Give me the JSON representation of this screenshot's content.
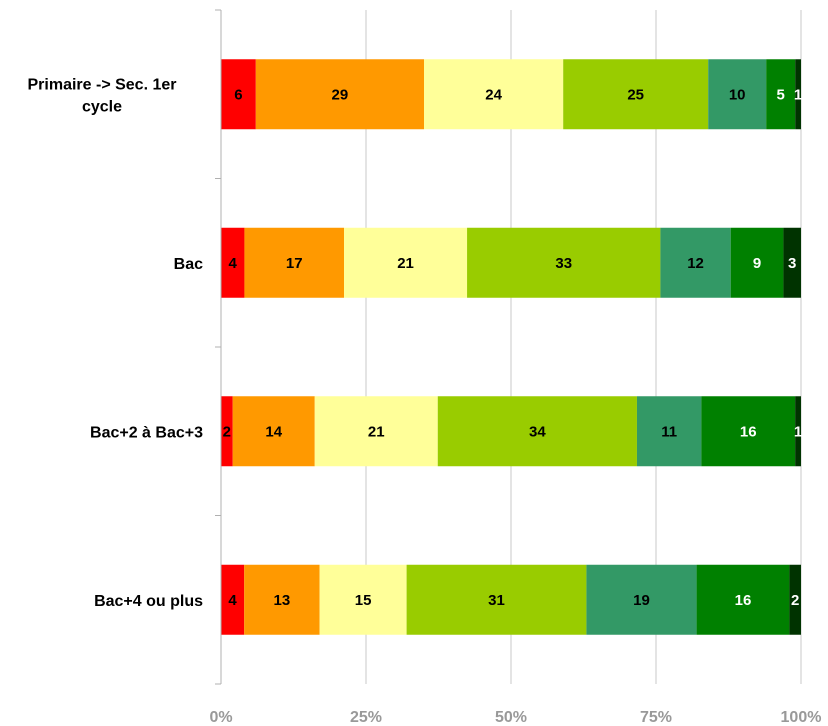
{
  "chart_data": {
    "type": "bar",
    "orientation": "horizontal",
    "stacked": "percent",
    "categories": [
      "Primaire -> Sec. 1er cycle",
      "Bac",
      "Bac+2 à Bac+3",
      "Bac+4 ou plus"
    ],
    "category_lines": [
      [
        "Primaire -> Sec. 1er",
        "cycle"
      ],
      [
        "Bac"
      ],
      [
        "Bac+2 à Bac+3"
      ],
      [
        "Bac+4 ou plus"
      ]
    ],
    "series": [
      {
        "values": [
          6,
          4,
          2,
          4
        ],
        "color": "#ff0000"
      },
      {
        "values": [
          29,
          17,
          14,
          13
        ],
        "color": "#ff9900"
      },
      {
        "values": [
          24,
          21,
          21,
          15
        ],
        "color": "#ffff99"
      },
      {
        "values": [
          25,
          33,
          34,
          31
        ],
        "color": "#99cc00"
      },
      {
        "values": [
          10,
          12,
          11,
          19
        ],
        "color": "#339966"
      },
      {
        "values": [
          5,
          9,
          16,
          16
        ],
        "color": "#008000"
      },
      {
        "values": [
          1,
          3,
          1,
          2
        ],
        "color": "#003300"
      }
    ],
    "xticks": [
      "0%",
      "25%",
      "50%",
      "75%",
      "100%"
    ],
    "xlim": [
      0,
      100
    ],
    "grid": true,
    "legend": "none"
  }
}
